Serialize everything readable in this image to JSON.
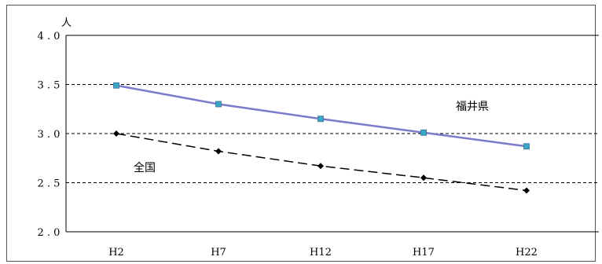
{
  "chart_data": {
    "type": "line",
    "categories": [
      "H2",
      "H7",
      "H12",
      "H17",
      "H22"
    ],
    "y_unit": "人",
    "ylim": [
      2.0,
      4.0
    ],
    "y_ticks": [
      "2.0",
      "2.5",
      "3.0",
      "3.5",
      "4.0"
    ],
    "y_tick_values": [
      2.0,
      2.5,
      3.0,
      3.5,
      4.0
    ],
    "grid": "horizontal dashed at 2.5, 3.0, 3.5",
    "series": [
      {
        "name": "福井県",
        "values": [
          3.49,
          3.3,
          3.15,
          3.01,
          2.87
        ],
        "color": "#7b7bc9",
        "marker_color": "#39a7c6",
        "marker": "square",
        "line_style": "solid"
      },
      {
        "name": "全国",
        "values": [
          3.0,
          2.82,
          2.67,
          2.55,
          2.42
        ],
        "color": "#000000",
        "marker_color": "#000000",
        "marker": "diamond",
        "line_style": "dashed"
      }
    ]
  }
}
